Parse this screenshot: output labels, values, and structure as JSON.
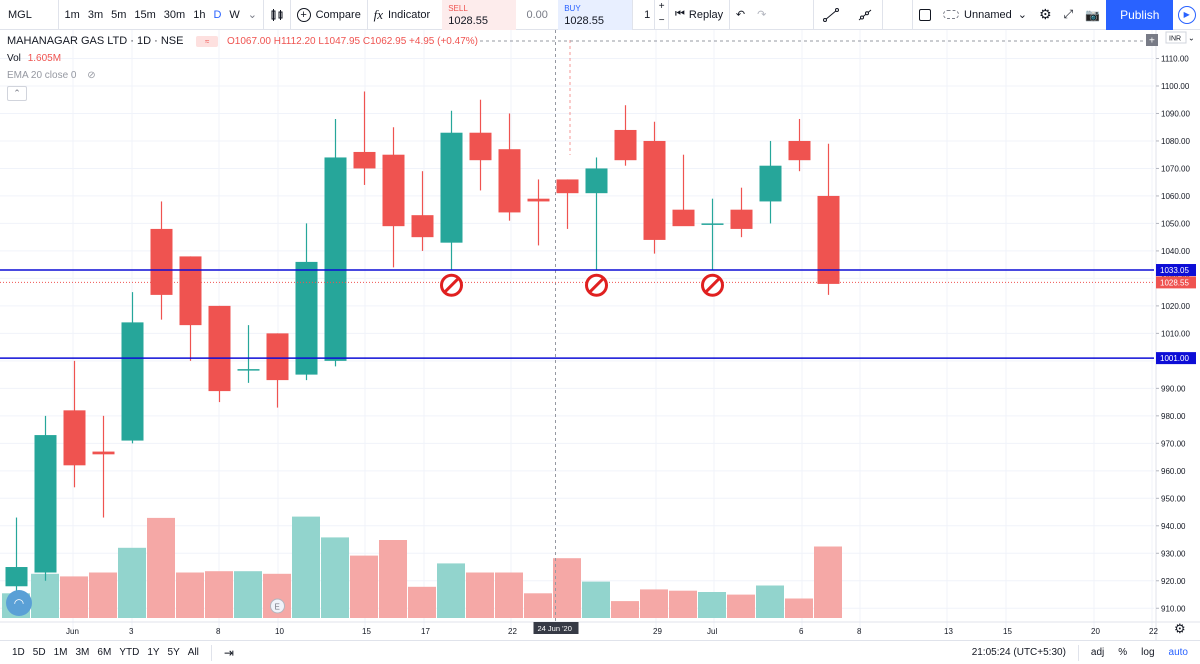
{
  "toolbar": {
    "symbol": "MGL",
    "intervals": [
      "1m",
      "3m",
      "5m",
      "15m",
      "30m",
      "1h",
      "D",
      "W"
    ],
    "active_interval": "D",
    "compare": "Compare",
    "indicators": "Indicator",
    "sell_label": "SELL",
    "sell_price": "1028.55",
    "spread": "0.00",
    "buy_label": "BUY",
    "buy_price": "1028.55",
    "quantity": "1",
    "replay": "Replay",
    "layout_name": "Unnamed",
    "publish": "Publish"
  },
  "legend": {
    "title": "MAHANAGAR GAS LTD · 1D · NSE",
    "open": "O1067.00",
    "high": "H1112.20",
    "low": "L1047.95",
    "close": "C1062.95",
    "change": "+4.95 (+0.47%)",
    "vol_label": "Vol",
    "vol_value": "1.605M",
    "ema": "EMA 20 close 0"
  },
  "price_scale": {
    "currency": "INR",
    "ticks": [
      "1110.00",
      "1100.00",
      "1090.00",
      "1080.00",
      "1070.00",
      "1060.00",
      "1050.00",
      "1040.00",
      "1030.00",
      "1020.00",
      "1010.00",
      "1000.00",
      "990.00",
      "980.00",
      "970.00",
      "960.00",
      "950.00",
      "940.00",
      "930.00",
      "920.00",
      "910.00"
    ],
    "markers": [
      {
        "label": "1033.05",
        "color": "#0d0dd6"
      },
      {
        "label": "1028.55",
        "color": "#ef5350"
      },
      {
        "label": "1001.00",
        "color": "#0d0dd6"
      }
    ]
  },
  "time_scale": {
    "labels": [
      "Jun",
      "3",
      "8",
      "10",
      "15",
      "17",
      "22",
      "29",
      "Jul",
      "6",
      "8",
      "13",
      "15",
      "20",
      "22"
    ],
    "crosshair_date": "24 Jun '20"
  },
  "bottom": {
    "ranges": [
      "1D",
      "5D",
      "1M",
      "3M",
      "6M",
      "YTD",
      "1Y",
      "5Y",
      "All"
    ],
    "clock": "21:05:24 (UTC+5:30)",
    "adj": "adj",
    "pct": "%",
    "log": "log",
    "auto": "auto"
  },
  "colors": {
    "up": "#26a69a",
    "down": "#ef5350",
    "up_vol": "#92d4cd",
    "down_vol": "#f5a8a6",
    "hline": "#0d0dd6",
    "accent": "#2962ff"
  },
  "chart_data": {
    "type": "candlestick",
    "y_range": [
      905,
      1116
    ],
    "candles": [
      {
        "o": 918,
        "h": 943,
        "l": 914,
        "c": 925
      },
      {
        "o": 923,
        "h": 980,
        "l": 920,
        "c": 973
      },
      {
        "o": 982,
        "h": 1000,
        "l": 954,
        "c": 962
      },
      {
        "o": 967,
        "h": 980,
        "l": 943,
        "c": 966
      },
      {
        "o": 971,
        "h": 1025,
        "l": 970,
        "c": 1014
      },
      {
        "o": 1048,
        "h": 1058,
        "l": 1015,
        "c": 1024
      },
      {
        "o": 1038,
        "h": 1038,
        "l": 1000,
        "c": 1013
      },
      {
        "o": 1020,
        "h": 1020,
        "l": 985,
        "c": 989
      },
      {
        "o": 997,
        "h": 1013,
        "l": 992,
        "c": 997
      },
      {
        "o": 1010,
        "h": 1010,
        "l": 983,
        "c": 993
      },
      {
        "o": 995,
        "h": 1050,
        "l": 993,
        "c": 1036
      },
      {
        "o": 1000,
        "h": 1088,
        "l": 998,
        "c": 1074
      },
      {
        "o": 1076,
        "h": 1098,
        "l": 1064,
        "c": 1070
      },
      {
        "o": 1075,
        "h": 1085,
        "l": 1034,
        "c": 1049
      },
      {
        "o": 1053,
        "h": 1069,
        "l": 1040,
        "c": 1045
      },
      {
        "o": 1043,
        "h": 1091,
        "l": 1033,
        "c": 1083
      },
      {
        "o": 1083,
        "h": 1095,
        "l": 1062,
        "c": 1073
      },
      {
        "o": 1077,
        "h": 1090,
        "l": 1051,
        "c": 1054
      },
      {
        "o": 1059,
        "h": 1066,
        "l": 1042,
        "c": 1058
      },
      {
        "o": 1066,
        "h": 1066,
        "l": 1048,
        "c": 1061
      },
      {
        "o": 1061,
        "h": 1074,
        "l": 1033,
        "c": 1070
      },
      {
        "o": 1084,
        "h": 1093,
        "l": 1071,
        "c": 1073
      },
      {
        "o": 1080,
        "h": 1087,
        "l": 1039,
        "c": 1044
      },
      {
        "o": 1055,
        "h": 1075,
        "l": 1050,
        "c": 1049
      },
      {
        "o": 1050,
        "h": 1059,
        "l": 1033,
        "c": 1050
      },
      {
        "o": 1055,
        "h": 1063,
        "l": 1045,
        "c": 1048
      },
      {
        "o": 1058,
        "h": 1080,
        "l": 1050,
        "c": 1071
      },
      {
        "o": 1080,
        "h": 1088,
        "l": 1069,
        "c": 1073
      },
      {
        "o": 1060,
        "h": 1079,
        "l": 1024,
        "c": 1028
      }
    ],
    "volume_rel": [
      0.19,
      0.34,
      0.32,
      0.35,
      0.54,
      0.77,
      0.35,
      0.36,
      0.36,
      0.34,
      0.78,
      0.62,
      0.48,
      0.6,
      0.24,
      0.42,
      0.35,
      0.35,
      0.19,
      0.46,
      0.28,
      0.13,
      0.22,
      0.21,
      0.2,
      0.18,
      0.25,
      0.15,
      0.55
    ],
    "hlines": [
      1033.05,
      1001.0
    ],
    "last_price": 1028.55,
    "no_sign_candles": [
      15,
      20,
      24
    ],
    "earnings_marker_candle": 9,
    "crosshair_candle": 19
  }
}
